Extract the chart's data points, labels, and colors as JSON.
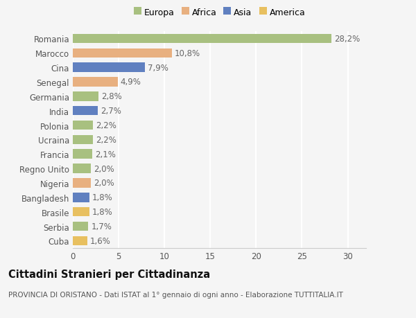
{
  "categories": [
    "Romania",
    "Marocco",
    "Cina",
    "Senegal",
    "Germania",
    "India",
    "Polonia",
    "Ucraina",
    "Francia",
    "Regno Unito",
    "Nigeria",
    "Bangladesh",
    "Brasile",
    "Serbia",
    "Cuba"
  ],
  "values": [
    28.2,
    10.8,
    7.9,
    4.9,
    2.8,
    2.7,
    2.2,
    2.2,
    2.1,
    2.0,
    2.0,
    1.8,
    1.8,
    1.7,
    1.6
  ],
  "labels": [
    "28,2%",
    "10,8%",
    "7,9%",
    "4,9%",
    "2,8%",
    "2,7%",
    "2,2%",
    "2,2%",
    "2,1%",
    "2,0%",
    "2,0%",
    "1,8%",
    "1,8%",
    "1,7%",
    "1,6%"
  ],
  "colors": [
    "#a8c080",
    "#e8b080",
    "#6080c0",
    "#e8b080",
    "#a8c080",
    "#6080c0",
    "#a8c080",
    "#a8c080",
    "#a8c080",
    "#a8c080",
    "#e8b080",
    "#6080c0",
    "#e8c060",
    "#a8c080",
    "#e8c060"
  ],
  "legend_labels": [
    "Europa",
    "Africa",
    "Asia",
    "America"
  ],
  "legend_colors": [
    "#a8c080",
    "#e8b080",
    "#6080c0",
    "#e8c060"
  ],
  "title": "Cittadini Stranieri per Cittadinanza",
  "subtitle": "PROVINCIA DI ORISTANO - Dati ISTAT al 1° gennaio di ogni anno - Elaborazione TUTTITALIA.IT",
  "xlim": [
    0,
    32
  ],
  "xticks": [
    0,
    5,
    10,
    15,
    20,
    25,
    30
  ],
  "background_color": "#f5f5f5",
  "bar_height": 0.65,
  "label_fontsize": 8.5,
  "tick_fontsize": 8.5,
  "title_fontsize": 10.5,
  "subtitle_fontsize": 7.5,
  "legend_fontsize": 9
}
